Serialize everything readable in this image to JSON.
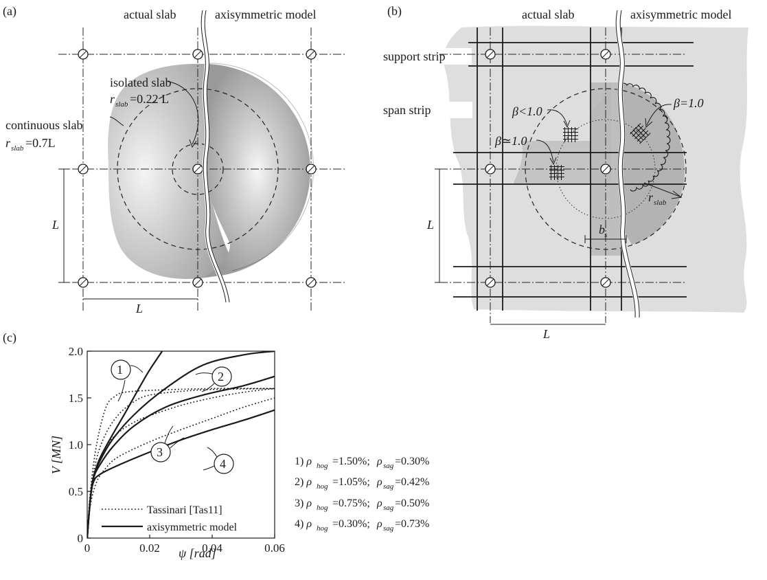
{
  "panel_a": {
    "label": "(a)",
    "actual_slab": "actual slab",
    "axisym_model": "axisymmetric model",
    "isolated_slab": "isolated slab",
    "isolated_r": "r",
    "isolated_r_sub": "slab",
    "isolated_r_val": "=0.22 L",
    "continuous_slab": "continuous slab",
    "continuous_r": "r",
    "continuous_r_sub": "slab",
    "continuous_r_val": "=0.7L",
    "dim_vertical": "L",
    "dim_horizontal": "L"
  },
  "panel_b": {
    "label": "(b)",
    "actual_slab": "actual slab",
    "axisym_model": "axisymmetric model",
    "support_strip": "support strip",
    "span_strip": "span strip",
    "beta_lt": "β<1.0",
    "beta_approx": "β≃1.0",
    "beta_eq": "β=1.0",
    "r": "r",
    "r_sub": "slab",
    "b": "b",
    "b_sub": "s",
    "dim_vertical": "L",
    "dim_horizontal": "L"
  },
  "panel_c": {
    "label": "(c)",
    "legend_dotted": "Tassinari [Tas11]",
    "legend_solid": "axisymmetric model",
    "callouts": [
      "1",
      "2",
      "3",
      "4"
    ],
    "params": [
      {
        "idx": "1)",
        "hog": "=1.50%;",
        "sag": "=0.30%"
      },
      {
        "idx": "2)",
        "hog": "=1.05%;",
        "sag": "=0.42%"
      },
      {
        "idx": "3)",
        "hog": "=0.75%;",
        "sag": "=0.50%"
      },
      {
        "idx": "4)",
        "hog": "=0.30%;",
        "sag": "=0.73%"
      }
    ],
    "rho": "ρ",
    "hog_sub": "hog",
    "sag_sub": "sag"
  },
  "chart_data": {
    "type": "line",
    "title": "",
    "xlabel": "ψ [rad]",
    "ylabel": "V [MN]",
    "xlim": [
      0,
      0.06
    ],
    "ylim": [
      0,
      2.0
    ],
    "xticks": [
      "0",
      "0.02",
      "0.04",
      "0.06"
    ],
    "yticks": [
      "0",
      "0.5",
      "1.0",
      "1.5",
      "2.0"
    ],
    "legend": "bottom-left",
    "grid": false,
    "series": [
      {
        "name": "axisymmetric model",
        "style": "solid",
        "curve": "1",
        "x": [
          0,
          0.001,
          0.002,
          0.004,
          0.008,
          0.012,
          0.016,
          0.02,
          0.024
        ],
        "y": [
          0,
          0.42,
          0.65,
          0.85,
          1.1,
          1.33,
          1.57,
          1.8,
          2.0
        ]
      },
      {
        "name": "axisymmetric model",
        "style": "solid",
        "curve": "2",
        "x": [
          0,
          0.001,
          0.002,
          0.004,
          0.008,
          0.015,
          0.025,
          0.037,
          0.05,
          0.06
        ],
        "y": [
          0,
          0.42,
          0.65,
          0.82,
          1.05,
          1.32,
          1.6,
          1.85,
          1.96,
          2.0
        ]
      },
      {
        "name": "axisymmetric model",
        "style": "solid",
        "curve": "3",
        "x": [
          0,
          0.001,
          0.002,
          0.004,
          0.008,
          0.015,
          0.025,
          0.037,
          0.05,
          0.06
        ],
        "y": [
          0,
          0.42,
          0.64,
          0.78,
          0.97,
          1.2,
          1.4,
          1.53,
          1.63,
          1.73
        ]
      },
      {
        "name": "axisymmetric model",
        "style": "solid",
        "curve": "4",
        "x": [
          0,
          0.001,
          0.002,
          0.004,
          0.01,
          0.02,
          0.03,
          0.04,
          0.05,
          0.06
        ],
        "y": [
          0,
          0.42,
          0.6,
          0.68,
          0.78,
          0.92,
          1.05,
          1.16,
          1.26,
          1.37
        ]
      },
      {
        "name": "Tassinari [Tas11]",
        "style": "dotted",
        "curve": "1",
        "x": [
          0,
          0.001,
          0.003,
          0.006,
          0.009,
          0.012,
          0.02,
          0.04,
          0.06
        ],
        "y": [
          0,
          0.5,
          1.0,
          1.4,
          1.52,
          1.56,
          1.58,
          1.6,
          1.6
        ]
      },
      {
        "name": "Tassinari [Tas11]",
        "style": "dotted",
        "curve": "2",
        "x": [
          0,
          0.001,
          0.003,
          0.006,
          0.01,
          0.015,
          0.02,
          0.03,
          0.04,
          0.06
        ],
        "y": [
          0,
          0.45,
          0.85,
          1.12,
          1.32,
          1.46,
          1.53,
          1.57,
          1.59,
          1.6
        ]
      },
      {
        "name": "Tassinari [Tas11]",
        "style": "dotted",
        "curve": "3",
        "x": [
          0,
          0.001,
          0.003,
          0.006,
          0.01,
          0.015,
          0.02,
          0.03,
          0.04,
          0.05,
          0.06
        ],
        "y": [
          0,
          0.4,
          0.75,
          0.98,
          1.13,
          1.24,
          1.31,
          1.42,
          1.5,
          1.56,
          1.6
        ]
      },
      {
        "name": "Tassinari [Tas11]",
        "style": "dotted",
        "curve": "4",
        "x": [
          0,
          0.001,
          0.003,
          0.006,
          0.01,
          0.02,
          0.03,
          0.04,
          0.05,
          0.06
        ],
        "y": [
          0,
          0.35,
          0.6,
          0.75,
          0.87,
          1.03,
          1.16,
          1.28,
          1.4,
          1.5
        ]
      }
    ]
  }
}
